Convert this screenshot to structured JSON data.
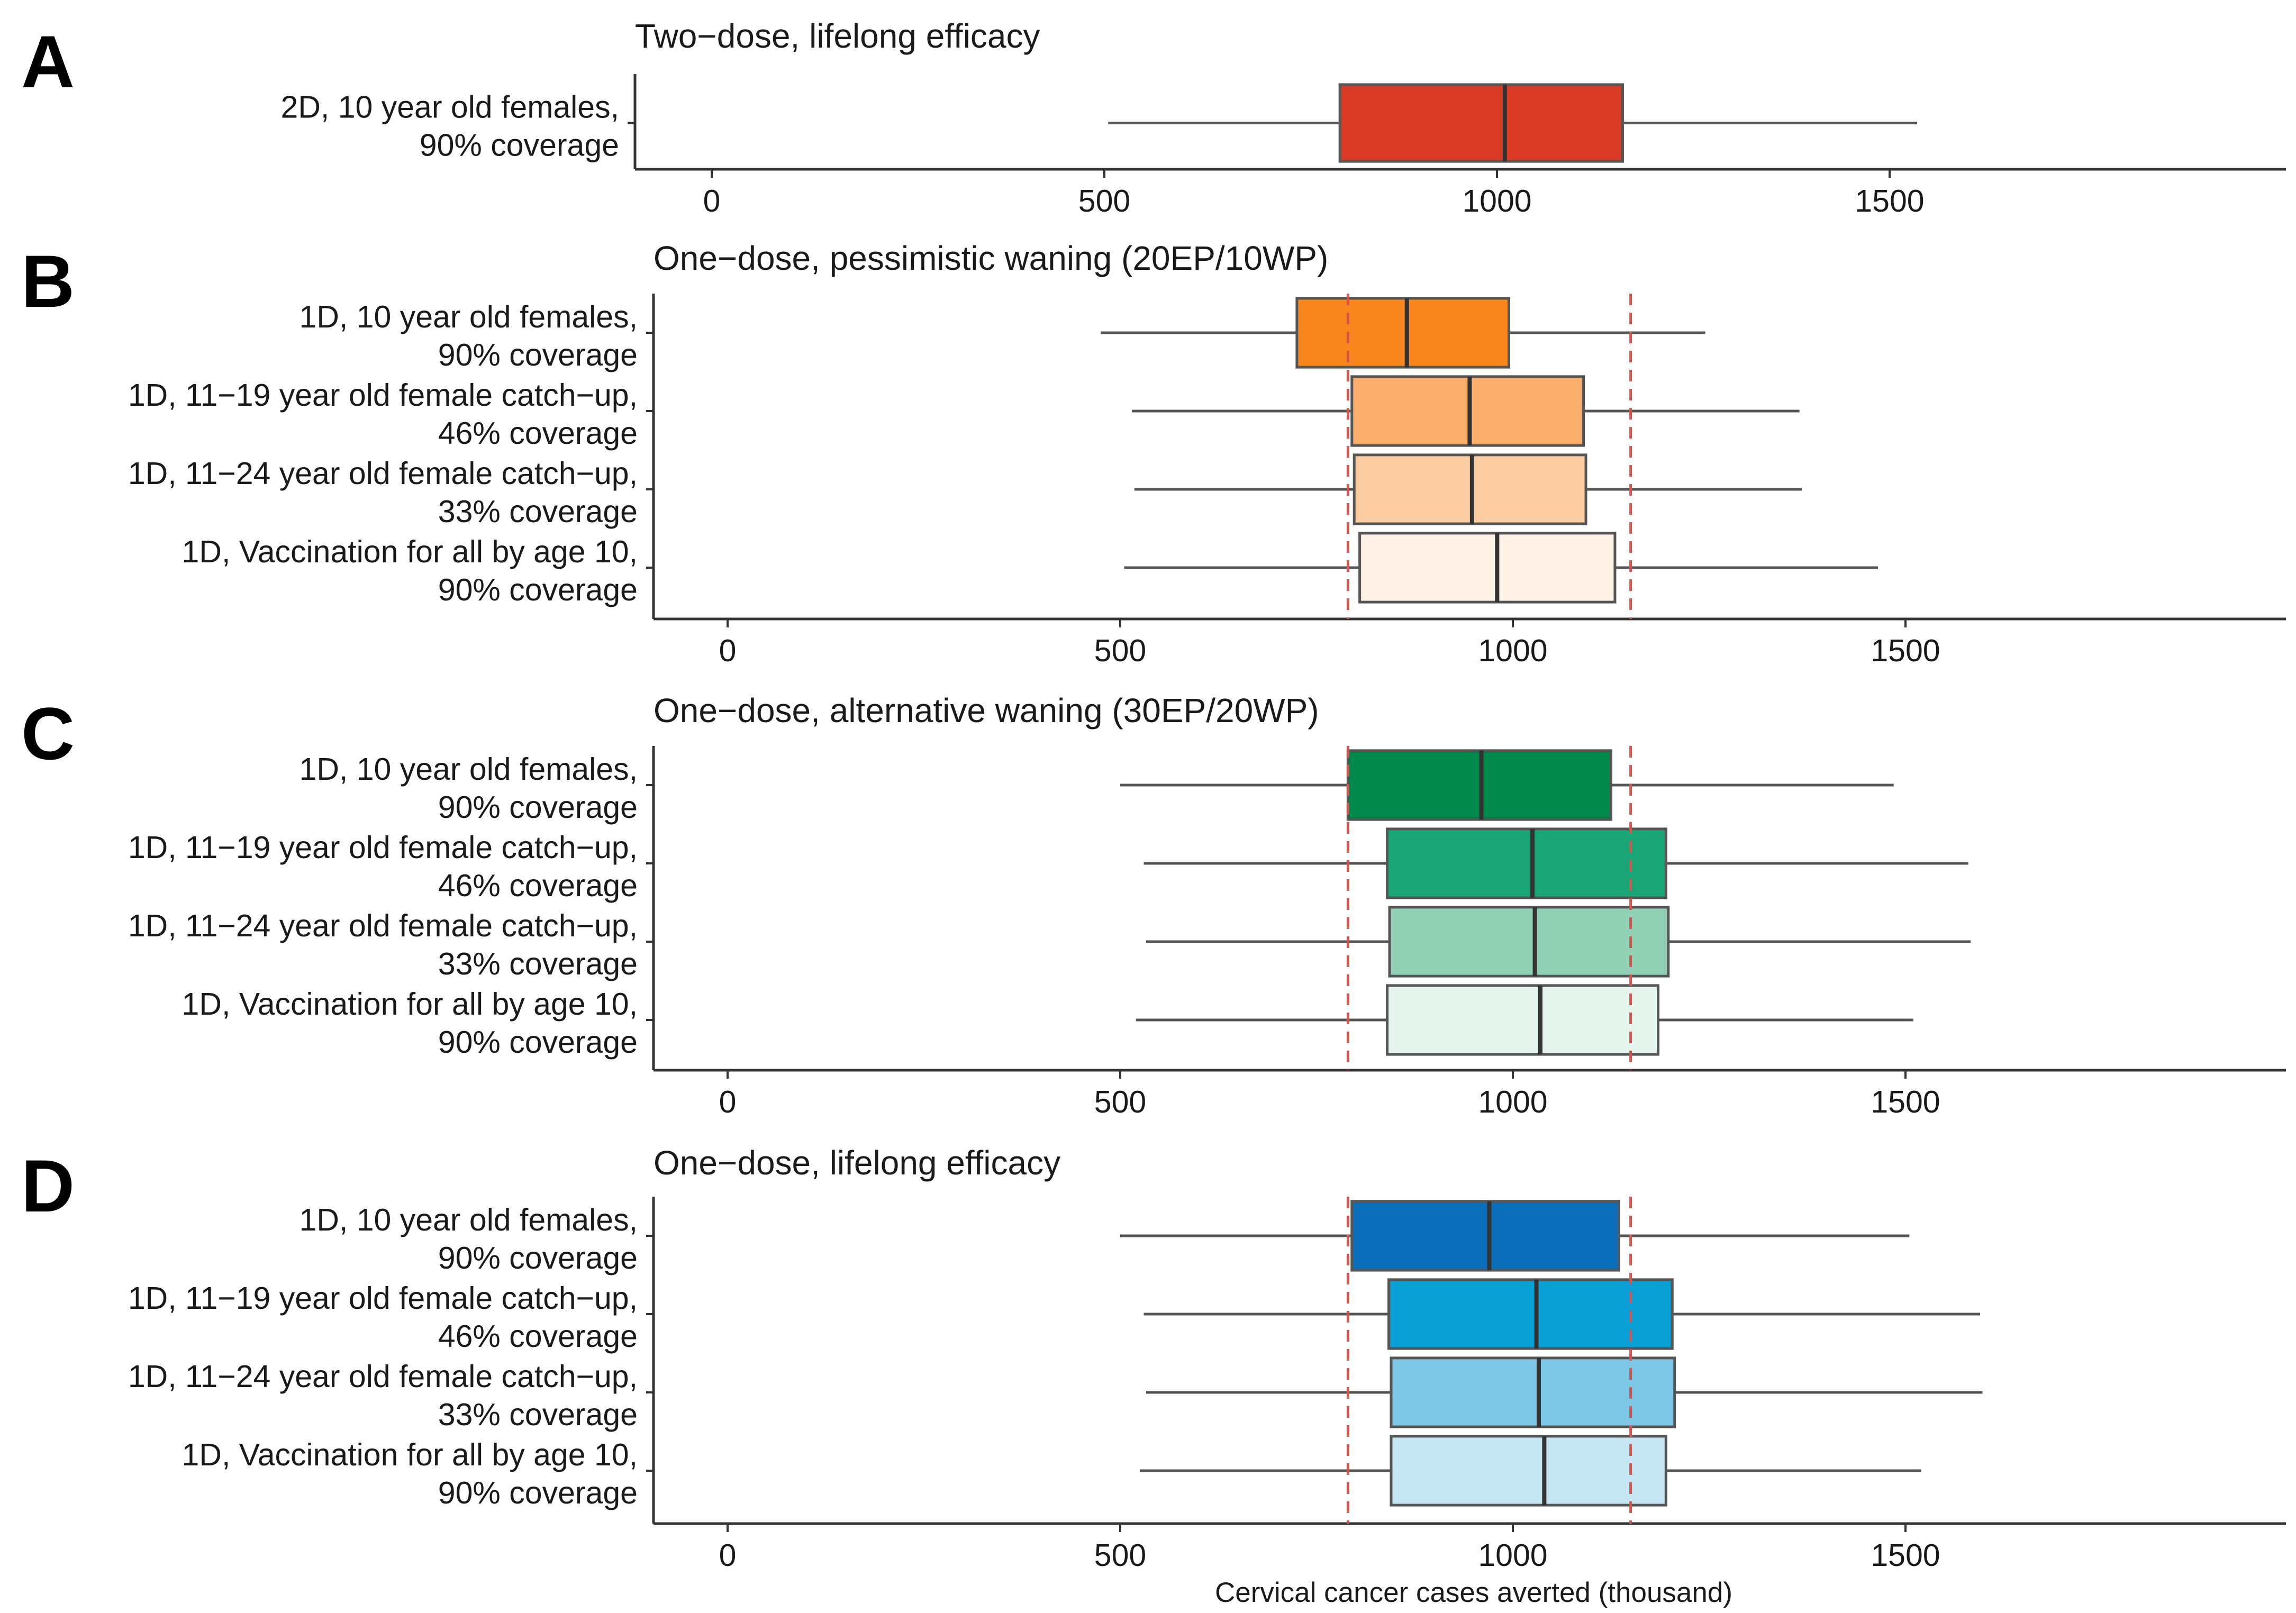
{
  "chart_data": [
    {
      "type": "box",
      "letter": "A",
      "title": "Two−dose, lifelong efficacy",
      "xlim": [
        0,
        1950
      ],
      "ticks": [
        0,
        500,
        1000,
        1500
      ],
      "xlabel": "",
      "reference_lines": [],
      "boxes": [
        {
          "label": [
            "2D, 10 year old females,",
            "90% coverage"
          ],
          "min": 505,
          "q1": 800,
          "median": 1010,
          "q3": 1160,
          "max": 1535,
          "color": "#d93a26"
        }
      ]
    },
    {
      "type": "box",
      "letter": "B",
      "title": "One−dose, pessimistic waning (20EP/10WP)",
      "xlim": [
        0,
        1990
      ],
      "ticks": [
        0,
        500,
        1000,
        1500
      ],
      "xlabel": "",
      "reference_lines": [
        790,
        1150
      ],
      "boxes": [
        {
          "label": [
            "1D, 10 year old females,",
            "90% coverage"
          ],
          "min": 475,
          "q1": 725,
          "median": 865,
          "q3": 995,
          "max": 1245,
          "color": "#f7871e"
        },
        {
          "label": [
            "1D, 11−19 year old female catch−up,",
            "46% coverage"
          ],
          "min": 515,
          "q1": 795,
          "median": 945,
          "q3": 1090,
          "max": 1365,
          "color": "#fbad6b"
        },
        {
          "label": [
            "1D, 11−24 year old female catch−up,",
            "33% coverage"
          ],
          "min": 518,
          "q1": 798,
          "median": 948,
          "q3": 1093,
          "max": 1368,
          "color": "#fdcda3"
        },
        {
          "label": [
            "1D, Vaccination for all by age 10,",
            "90% coverage"
          ],
          "min": 505,
          "q1": 805,
          "median": 980,
          "q3": 1130,
          "max": 1465,
          "color": "#fef1e6"
        }
      ]
    },
    {
      "type": "box",
      "letter": "C",
      "title": "One−dose, alternative waning (30EP/20WP)",
      "xlim": [
        0,
        1990
      ],
      "ticks": [
        0,
        500,
        1000,
        1500
      ],
      "xlabel": "",
      "reference_lines": [
        790,
        1150
      ],
      "boxes": [
        {
          "label": [
            "1D, 10 year old females,",
            "90% coverage"
          ],
          "min": 500,
          "q1": 790,
          "median": 960,
          "q3": 1125,
          "max": 1485,
          "color": "#00874a"
        },
        {
          "label": [
            "1D, 11−19 year old female catch−up,",
            "46% coverage"
          ],
          "min": 530,
          "q1": 840,
          "median": 1025,
          "q3": 1195,
          "max": 1580,
          "color": "#1aa577"
        },
        {
          "label": [
            "1D, 11−24 year old female catch−up,",
            "33% coverage"
          ],
          "min": 533,
          "q1": 843,
          "median": 1028,
          "q3": 1198,
          "max": 1583,
          "color": "#92d1b6"
        },
        {
          "label": [
            "1D, Vaccination for all by age 10,",
            "90% coverage"
          ],
          "min": 520,
          "q1": 840,
          "median": 1035,
          "q3": 1185,
          "max": 1510,
          "color": "#e6f4ee"
        }
      ]
    },
    {
      "type": "box",
      "letter": "D",
      "title": "One−dose, lifelong efficacy",
      "xlim": [
        0,
        1990
      ],
      "ticks": [
        0,
        500,
        1000,
        1500
      ],
      "xlabel": "Cervical cancer cases averted (thousand)",
      "reference_lines": [
        790,
        1150
      ],
      "boxes": [
        {
          "label": [
            "1D, 10 year old females,",
            "90% coverage"
          ],
          "min": 500,
          "q1": 795,
          "median": 970,
          "q3": 1135,
          "max": 1505,
          "color": "#0a6eba"
        },
        {
          "label": [
            "1D, 11−19 year old female catch−up,",
            "46% coverage"
          ],
          "min": 530,
          "q1": 842,
          "median": 1030,
          "q3": 1203,
          "max": 1595,
          "color": "#0a9fd4"
        },
        {
          "label": [
            "1D, 11−24 year old female catch−up,",
            "33% coverage"
          ],
          "min": 533,
          "q1": 845,
          "median": 1033,
          "q3": 1206,
          "max": 1598,
          "color": "#7ec6e6"
        },
        {
          "label": [
            "1D, Vaccination for all by age 10,",
            "90% coverage"
          ],
          "min": 525,
          "q1": 845,
          "median": 1040,
          "q3": 1195,
          "max": 1520,
          "color": "#c6e5f3"
        }
      ]
    }
  ]
}
